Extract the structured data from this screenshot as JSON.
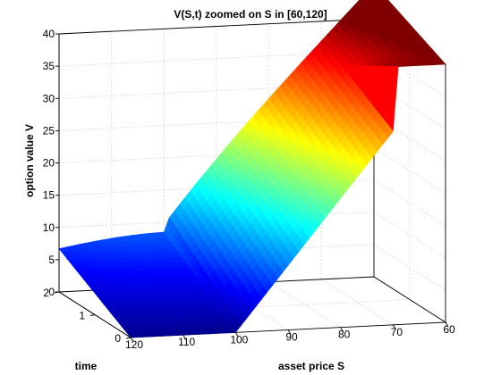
{
  "chart_data": {
    "type": "surface",
    "title": "V(S,t) zoomed on S in [60,120]",
    "xlabel": "asset price S",
    "ylabel": "time",
    "zlabel": "option value V",
    "xlim": [
      60,
      120
    ],
    "ylim": [
      0,
      2
    ],
    "zlim": [
      0,
      40
    ],
    "x_ticks": [
      60,
      70,
      80,
      90,
      100,
      110,
      120
    ],
    "y_ticks": [
      0,
      1,
      2
    ],
    "z_ticks": [
      0,
      5,
      10,
      15,
      20,
      25,
      30,
      35,
      40
    ],
    "colormap": "jet",
    "grid": true,
    "surface_samples": [
      {
        "S": 60,
        "t": 0,
        "V": 40
      },
      {
        "S": 60,
        "t": 2,
        "V": 32.5
      },
      {
        "S": 80,
        "t": 0,
        "V": 20
      },
      {
        "S": 80,
        "t": 2,
        "V": 20
      },
      {
        "S": 100,
        "t": 0,
        "V": 0
      },
      {
        "S": 100,
        "t": 2,
        "V": 11
      },
      {
        "S": 120,
        "t": 0,
        "V": 0
      },
      {
        "S": 120,
        "t": 2,
        "V": 8.5
      }
    ]
  }
}
